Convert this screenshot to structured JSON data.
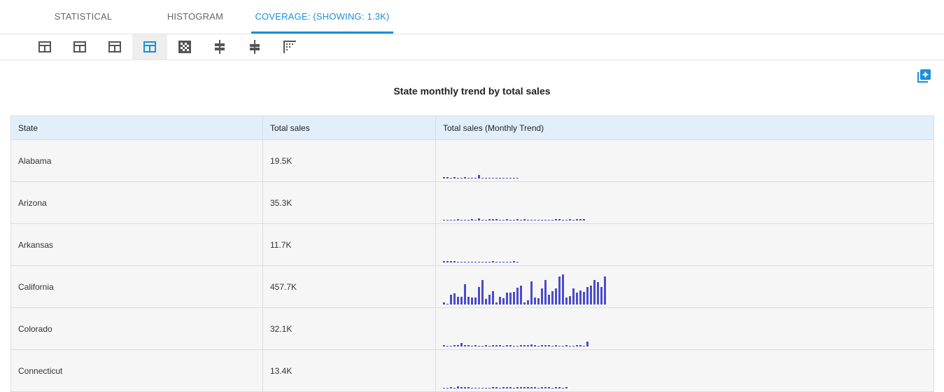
{
  "tabs": [
    {
      "label": "STATISTICAL"
    },
    {
      "label": "HISTOGRAM"
    },
    {
      "label": "COVERAGE: (SHOWING: 1.3K)"
    }
  ],
  "toolbar": {
    "icons": [
      "table-icon",
      "table-icon",
      "table-icon",
      "table-active-icon",
      "checker-grid-icon",
      "align-center-icon",
      "align-center-alt-icon",
      "sparkline-grid-icon"
    ],
    "active_index": 3
  },
  "add_icon": "add-box-icon",
  "title": "State monthly trend by total sales",
  "table": {
    "headers": [
      "State",
      "Total sales",
      "Total sales (Monthly Trend)"
    ],
    "accent_color": "#4b4bcc",
    "rows": [
      {
        "state": "Alabama",
        "total": "19.5K",
        "trend": [
          1,
          2,
          0,
          2,
          0,
          0,
          1,
          0,
          0,
          0,
          4,
          0,
          0,
          0,
          0,
          0,
          0,
          0,
          0,
          0,
          0,
          0
        ]
      },
      {
        "state": "Arizona",
        "total": "35.3K",
        "trend": [
          0,
          0,
          0,
          0,
          1,
          0,
          0,
          0,
          1,
          0,
          3,
          0,
          0,
          1,
          1,
          1,
          0,
          0,
          1,
          0,
          0,
          1,
          0,
          2,
          0,
          0,
          0,
          0,
          0,
          0,
          0,
          0,
          1,
          1,
          0,
          0,
          1,
          0,
          1,
          2,
          1
        ]
      },
      {
        "state": "Arkansas",
        "total": "11.7K",
        "trend": [
          2,
          1,
          1,
          2,
          0,
          0,
          0,
          0,
          0,
          0,
          0,
          0,
          0,
          0,
          1,
          0,
          0,
          0,
          0,
          0,
          1,
          0
        ]
      },
      {
        "state": "California",
        "total": "457.7K",
        "trend": [
          3,
          0,
          12,
          14,
          10,
          10,
          26,
          10,
          9,
          9,
          22,
          31,
          7,
          12,
          17,
          3,
          10,
          8,
          15,
          15,
          16,
          21,
          24,
          3,
          5,
          29,
          9,
          8,
          20,
          31,
          12,
          17,
          20,
          35,
          38,
          9,
          11,
          20,
          15,
          18,
          16,
          22,
          24,
          31,
          28,
          22,
          35
        ]
      },
      {
        "state": "Colorado",
        "total": "32.1K",
        "trend": [
          1,
          0,
          0,
          1,
          1,
          4,
          1,
          1,
          0,
          1,
          0,
          0,
          1,
          0,
          1,
          1,
          1,
          0,
          1,
          2,
          0,
          0,
          1,
          1,
          1,
          3,
          1,
          0,
          1,
          1,
          1,
          0,
          1,
          0,
          0,
          1,
          0,
          0,
          1,
          1,
          0,
          6
        ]
      },
      {
        "state": "Connecticut",
        "total": "13.4K",
        "trend": [
          0,
          0,
          1,
          0,
          3,
          2,
          1,
          1,
          0,
          0,
          0,
          0,
          0,
          0,
          1,
          1,
          0,
          2,
          2,
          1,
          0,
          1,
          2,
          2,
          1,
          1,
          1,
          0,
          1,
          1,
          2,
          0,
          1,
          1,
          0,
          2
        ]
      }
    ]
  }
}
